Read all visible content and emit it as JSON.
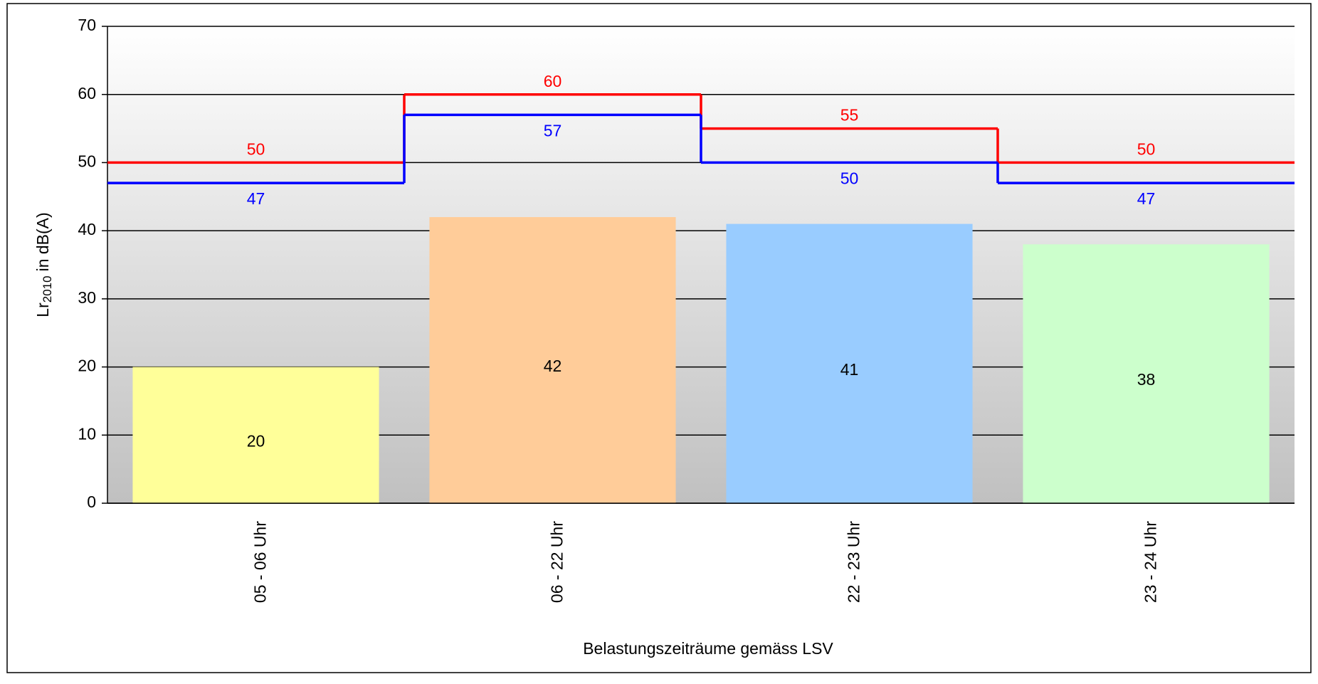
{
  "chart_data": {
    "type": "bar",
    "categories": [
      "05 - 06 Uhr",
      "06 - 22 Uhr",
      "22 - 23 Uhr",
      "23 - 24 Uhr"
    ],
    "values": [
      20,
      42,
      41,
      38
    ],
    "colors": [
      "#ffff99",
      "#ffcc99",
      "#99ccff",
      "#ccffcc"
    ],
    "step_lines": [
      {
        "color": "#ff0000",
        "values": [
          50,
          60,
          55,
          50
        ]
      },
      {
        "color": "#0000ff",
        "values": [
          47,
          57,
          50,
          47
        ]
      }
    ],
    "ylabel_parts": [
      "Lr",
      "2010",
      "in dB(A)"
    ],
    "xlabel": "Belastungszeiträume gemäss LSV",
    "ylim": [
      0,
      70
    ],
    "yticks": [
      0,
      10,
      20,
      30,
      40,
      50,
      60,
      70
    ],
    "grid": true
  }
}
